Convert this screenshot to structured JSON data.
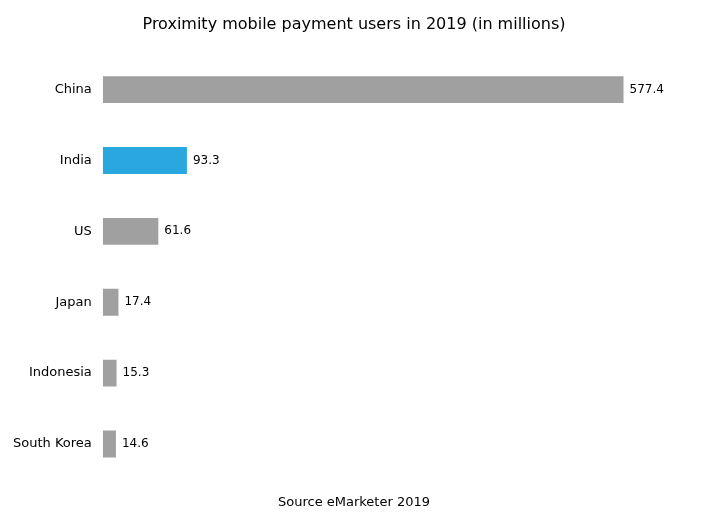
{
  "chart_data": {
    "type": "bar",
    "orientation": "horizontal",
    "title": "Proximity mobile payment users in 2019 (in millions)",
    "categories": [
      "South Korea",
      "Indonesia",
      "Japan",
      "US",
      "India",
      "China"
    ],
    "values": [
      14.6,
      15.3,
      17.4,
      61.6,
      93.3,
      577.4
    ],
    "colors": [
      "#a0a0a0",
      "#a0a0a0",
      "#a0a0a0",
      "#a0a0a0",
      "#29a8e0",
      "#a0a0a0"
    ],
    "xlim": [
      0,
      660
    ],
    "data_labels": true,
    "tick_labels": "y",
    "grid": false,
    "annotations": [
      "Source eMarketer 2019"
    ]
  }
}
